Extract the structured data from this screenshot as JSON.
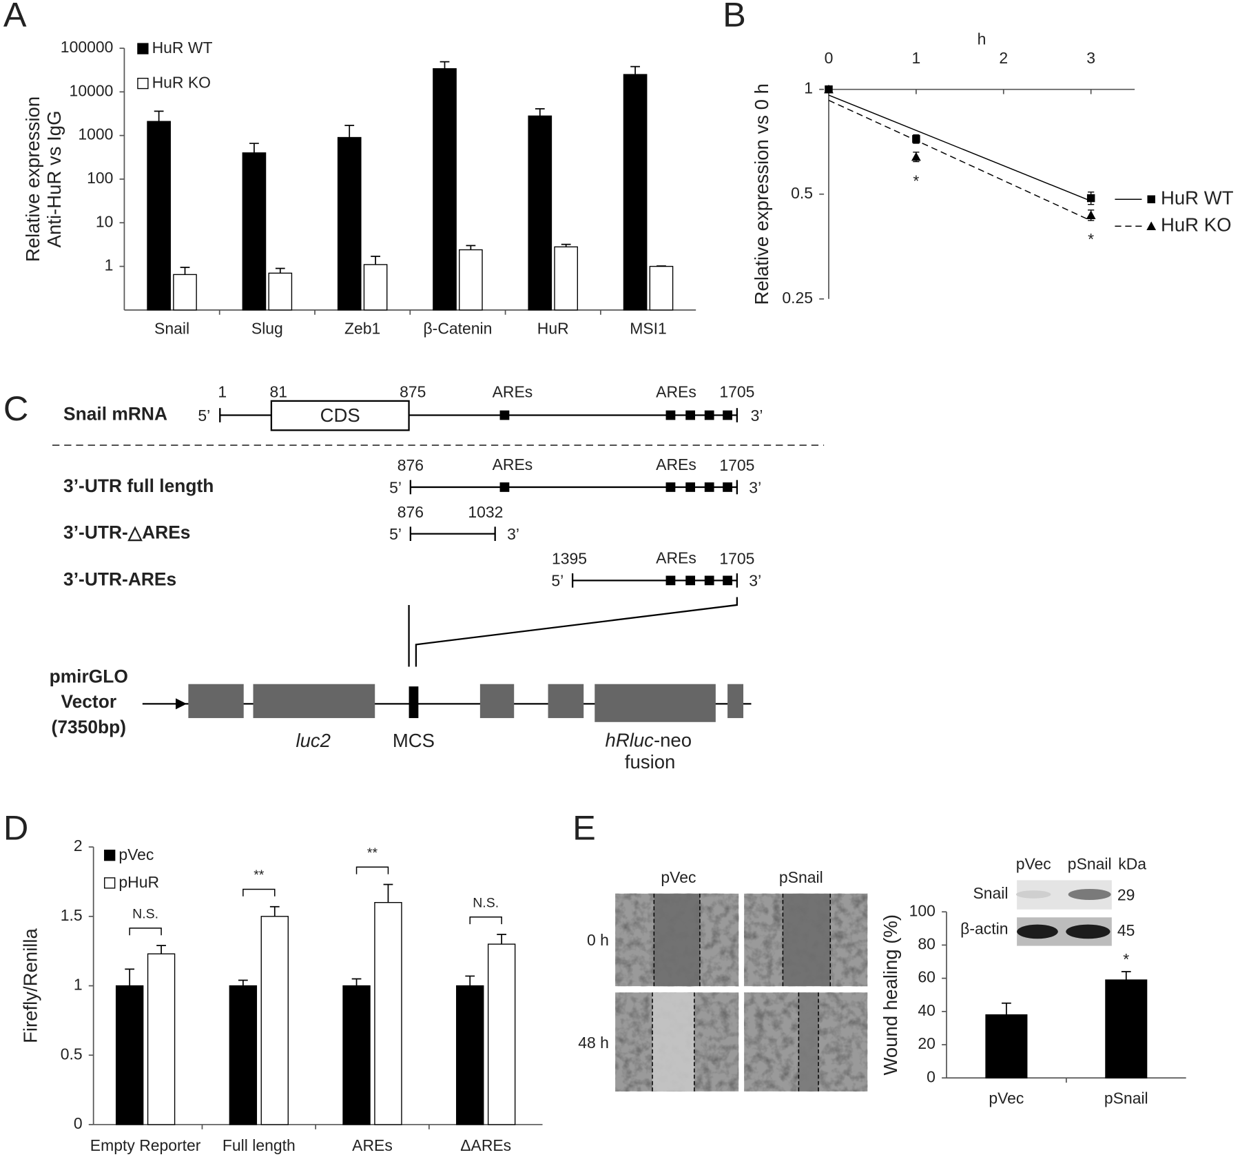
{
  "panel_labels": [
    "A",
    "B",
    "C",
    "D",
    "E"
  ],
  "chart_data": [
    {
      "type": "bar",
      "log_y": true,
      "ylabel": [
        "Relative expression",
        "Anti-HuR vs IgG"
      ],
      "categories": [
        "Snail",
        "Slug",
        "Zeb1",
        "β-Catenin",
        "HuR",
        "MSI1"
      ],
      "series": [
        {
          "name": "HuR WT",
          "color": "#000000",
          "values": [
            2100,
            400,
            900,
            34000,
            2800,
            25000
          ],
          "errors": [
            1500,
            260,
            800,
            15000,
            1300,
            13000
          ]
        },
        {
          "name": "HuR KO",
          "color": "#ffffff",
          "values": [
            0.65,
            0.7,
            1.1,
            2.4,
            2.8,
            1
          ],
          "errors": [
            0.3,
            0.2,
            0.6,
            0.6,
            0.4,
            0.02
          ]
        }
      ],
      "ylim": [
        0.1,
        100000
      ],
      "yticks": [
        1,
        10,
        100,
        1000,
        10000,
        100000
      ],
      "legend": "upper left"
    },
    {
      "type": "line",
      "log_y": true,
      "xlabel": "h",
      "ylabel": "Relative expression vs 0 h",
      "x": [
        0,
        1,
        3
      ],
      "series": [
        {
          "name": "HuR WT",
          "color": "#000000",
          "marker": "square",
          "line": "solid",
          "values": [
            1,
            0.72,
            0.487
          ],
          "errors": [
            0,
            0.02,
            0.02
          ]
        },
        {
          "name": "HuR KO",
          "color": "#000000",
          "marker": "triangle",
          "line": "dashed",
          "values": [
            1,
            0.64,
            0.435
          ],
          "errors": [
            0,
            0.02,
            0.015
          ]
        }
      ],
      "xlim": [
        0,
        3.5
      ],
      "xticks": [
        0,
        1,
        2,
        3
      ],
      "ylim": [
        0.25,
        1
      ],
      "yticks": [
        0.25,
        0.5,
        1
      ],
      "annotations": [
        {
          "text": "*",
          "x": 1
        },
        {
          "text": "*",
          "x": 3
        }
      ],
      "legend": "right"
    },
    {
      "type": "bar",
      "ylabel": "Firefly/Renilla",
      "categories": [
        "Empty Reporter",
        "Full length",
        "AREs",
        "ΔAREs"
      ],
      "series": [
        {
          "name": "pVec",
          "color": "#000000",
          "values": [
            1,
            1,
            1,
            1
          ],
          "errors": [
            0.12,
            0.04,
            0.05,
            0.07
          ]
        },
        {
          "name": "pHuR",
          "color": "#ffffff",
          "values": [
            1.23,
            1.5,
            1.6,
            1.3
          ],
          "errors": [
            0.06,
            0.07,
            0.13,
            0.07
          ]
        }
      ],
      "ylim": [
        0,
        2
      ],
      "yticks": [
        0,
        0.5,
        1,
        1.5,
        2
      ],
      "annotations": [
        "N.S.",
        "**",
        "**",
        "N.S."
      ],
      "legend": "upper left"
    },
    {
      "type": "bar",
      "ylabel": "Wound healing (%)",
      "categories": [
        "pVec",
        "pSnail"
      ],
      "values": [
        38,
        59
      ],
      "errors": [
        7,
        5
      ],
      "color": "#000000",
      "ylim": [
        0,
        100
      ],
      "yticks": [
        0,
        20,
        40,
        60,
        80,
        100
      ],
      "annotations": [
        {
          "text": "*",
          "category": 1
        }
      ]
    }
  ],
  "diagram": {
    "mrna": {
      "label": "Snail mRNA",
      "positions": [
        1,
        81,
        875,
        1705
      ],
      "cds": "CDS",
      "ares": [
        "AREs",
        "AREs"
      ],
      "ends": [
        "5’",
        "3’"
      ]
    },
    "constructs": [
      {
        "label": "3’-UTR full length",
        "positions": [
          876,
          1705
        ],
        "ares": [
          "AREs",
          "AREs"
        ],
        "ends": [
          "5’",
          "3’"
        ]
      },
      {
        "label": "3’-UTR-△AREs",
        "positions": [
          876,
          1032
        ],
        "ends": [
          "5’",
          "3’"
        ]
      },
      {
        "label": "3’-UTR-AREs",
        "positions": [
          1395,
          1705
        ],
        "ares": [
          "AREs"
        ],
        "ends": [
          "5’",
          "3’"
        ]
      }
    ],
    "vector": {
      "label": [
        "pmirGLO",
        "Vector",
        "(7350bp)"
      ],
      "luc2": "luc2",
      "mcs": "MCS",
      "hrluc": "hRluc",
      "hrluc_suffix": "-neo",
      "fusion": "fusion"
    }
  },
  "wound_assay": {
    "columns": [
      "pVec",
      "pSnail"
    ],
    "rows": [
      "0 h",
      "48 h"
    ]
  },
  "blot": {
    "lanes": [
      "pVec",
      "pSnail"
    ],
    "unit": "kDa",
    "rows": [
      {
        "name": "Snail",
        "kda": 29
      },
      {
        "name": "β-actin",
        "kda": 45
      }
    ]
  }
}
